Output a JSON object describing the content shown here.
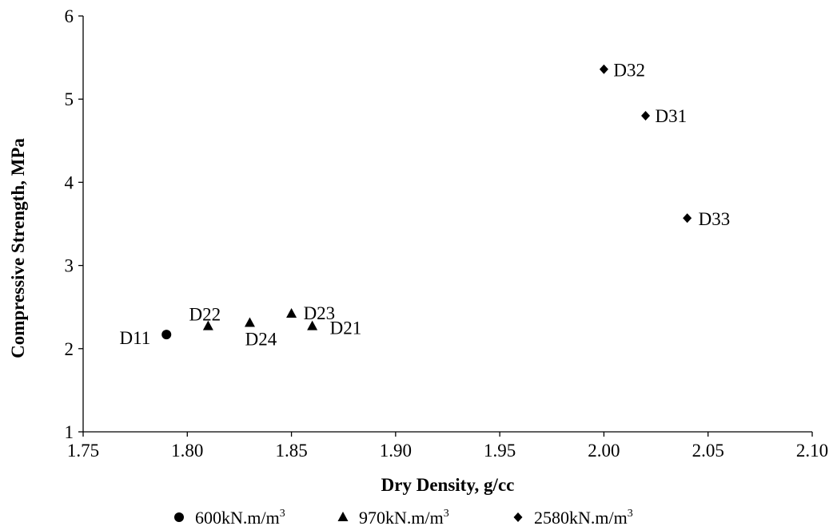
{
  "chart_data": {
    "type": "scatter",
    "title": "",
    "xlabel": "Dry Density, g/cc",
    "ylabel": "Compressive Strength, MPa",
    "xlim": [
      1.75,
      2.1
    ],
    "ylim": [
      1,
      6
    ],
    "x_ticks": [
      "1.75",
      "1.80",
      "1.85",
      "1.90",
      "1.95",
      "2.00",
      "2.05",
      "2.10"
    ],
    "y_ticks": [
      "1",
      "2",
      "3",
      "4",
      "5",
      "6"
    ],
    "grid": false,
    "legend_position": "bottom",
    "series": [
      {
        "name": "600kN.m/m",
        "name_sup": "3",
        "marker": "circle",
        "color": "#000000",
        "points": [
          {
            "label": "D11",
            "x": 1.79,
            "y": 2.17
          }
        ]
      },
      {
        "name": "970kN.m/m",
        "name_sup": "3",
        "marker": "triangle",
        "color": "#000000",
        "points": [
          {
            "label": "D22",
            "x": 1.81,
            "y": 2.27
          },
          {
            "label": "D24",
            "x": 1.83,
            "y": 2.31
          },
          {
            "label": "D23",
            "x": 1.85,
            "y": 2.42
          },
          {
            "label": "D21",
            "x": 1.86,
            "y": 2.27
          }
        ]
      },
      {
        "name": "2580kN.m/m",
        "name_sup": "3",
        "marker": "diamond",
        "color": "#000000",
        "points": [
          {
            "label": "D32",
            "x": 2.0,
            "y": 5.36
          },
          {
            "label": "D31",
            "x": 2.02,
            "y": 4.8
          },
          {
            "label": "D33",
            "x": 2.04,
            "y": 3.57
          }
        ]
      }
    ]
  }
}
